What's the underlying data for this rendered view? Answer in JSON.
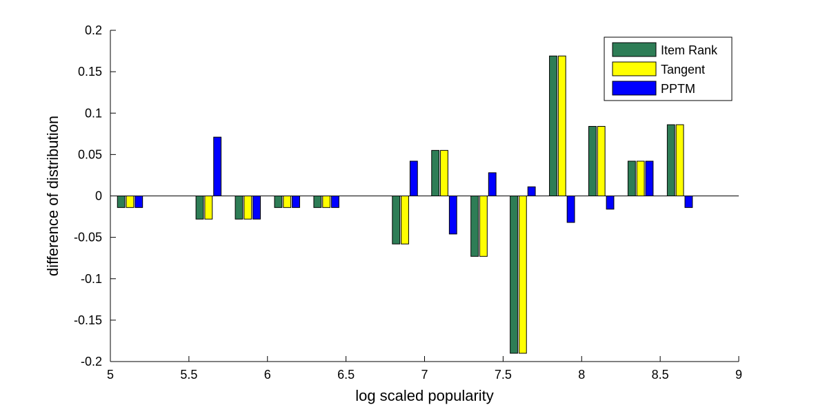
{
  "chart_data": {
    "type": "bar",
    "title": "",
    "xlabel": "log scaled popularity",
    "ylabel": "difference of distribution",
    "xlim": [
      5,
      9
    ],
    "ylim": [
      -0.2,
      0.2
    ],
    "xticks": [
      5,
      5.5,
      6,
      6.5,
      7,
      7.5,
      8,
      8.5,
      9
    ],
    "xtick_labels": [
      "5",
      "5.5",
      "6",
      "6.5",
      "7",
      "7.5",
      "8",
      "8.5",
      "9"
    ],
    "yticks": [
      -0.2,
      -0.15,
      -0.1,
      -0.05,
      0,
      0.05,
      0.1,
      0.15,
      0.2
    ],
    "ytick_labels": [
      "-0.2",
      "-0.15",
      "-0.1",
      "-0.05",
      "0",
      "0.05",
      "0.1",
      "0.15",
      "0.2"
    ],
    "grid": false,
    "legend_position": "top-right",
    "x": [
      5.125,
      5.625,
      5.875,
      6.125,
      6.375,
      6.875,
      7.125,
      7.375,
      7.625,
      7.875,
      8.125,
      8.375,
      8.625
    ],
    "series": [
      {
        "name": "Item Rank",
        "color": "#2e7d56",
        "values": [
          -0.014,
          -0.028,
          -0.028,
          -0.014,
          -0.014,
          -0.058,
          0.055,
          -0.073,
          -0.19,
          0.169,
          0.084,
          0.042,
          0.086
        ]
      },
      {
        "name": "Tangent",
        "color": "#ffff00",
        "values": [
          -0.014,
          -0.028,
          -0.028,
          -0.014,
          -0.014,
          -0.058,
          0.055,
          -0.073,
          -0.19,
          0.169,
          0.084,
          0.042,
          0.086
        ]
      },
      {
        "name": "PPTM",
        "color": "#0000ff",
        "values": [
          -0.014,
          0.071,
          -0.028,
          -0.014,
          -0.014,
          0.042,
          -0.046,
          0.028,
          0.011,
          -0.032,
          -0.016,
          0.042,
          -0.014
        ]
      }
    ]
  }
}
